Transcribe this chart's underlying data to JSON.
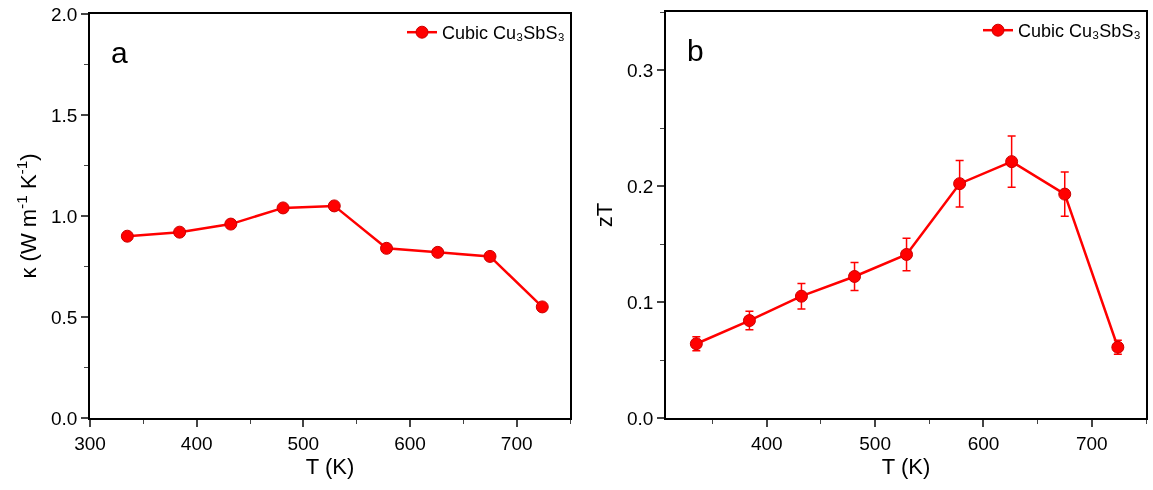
{
  "chart_data": [
    {
      "type": "line",
      "xlabel": "T (K)",
      "ylabel": "κ (W m$^{-1}$ K$^{-1}$)",
      "annotations": [
        "a"
      ],
      "x": [
        335,
        384,
        432,
        481,
        529,
        578,
        626,
        675,
        724
      ],
      "series": [
        {
          "name": "Cubic Cu₃SbS₃",
          "color": "#ff0000",
          "values": [
            0.9,
            0.92,
            0.96,
            1.04,
            1.05,
            0.84,
            0.82,
            0.8,
            0.55
          ]
        }
      ],
      "xlim": [
        300,
        750
      ],
      "xticks": [
        300,
        400,
        500,
        600,
        700
      ],
      "ylim": [
        0,
        2.0
      ],
      "yticks": [
        {
          "value": 0,
          "label": "0.0"
        },
        0.5,
        {
          "value": 1,
          "label": "1.0"
        },
        1.5,
        {
          "value": 2,
          "label": "2.0"
        }
      ],
      "grid": false,
      "legend": "top right",
      "marker": "circle",
      "line_style": "solid"
    },
    {
      "type": "line",
      "xlabel": "T (K)",
      "ylabel": "zT",
      "annotations": [
        "b"
      ],
      "x": [
        335,
        384,
        432,
        481,
        529,
        578,
        626,
        675,
        724
      ],
      "series": [
        {
          "name": "Cubic Cu₃SbS₃",
          "color": "#ff0000",
          "values": [
            0.064,
            0.084,
            0.105,
            0.122,
            0.141,
            0.202,
            0.221,
            0.193,
            0.061
          ],
          "errors": [
            0.006,
            0.008,
            0.011,
            0.012,
            0.014,
            0.02,
            0.022,
            0.019,
            0.006
          ]
        }
      ],
      "xlim": [
        307,
        750
      ],
      "xticks": [
        400,
        500,
        600,
        700
      ],
      "ylim": [
        0,
        0.35
      ],
      "yticks": [
        {
          "value": 0,
          "label": "0.0"
        },
        0.1,
        0.2,
        0.3
      ],
      "grid": false,
      "legend": "top right",
      "marker": "circle",
      "line_style": "solid"
    }
  ]
}
